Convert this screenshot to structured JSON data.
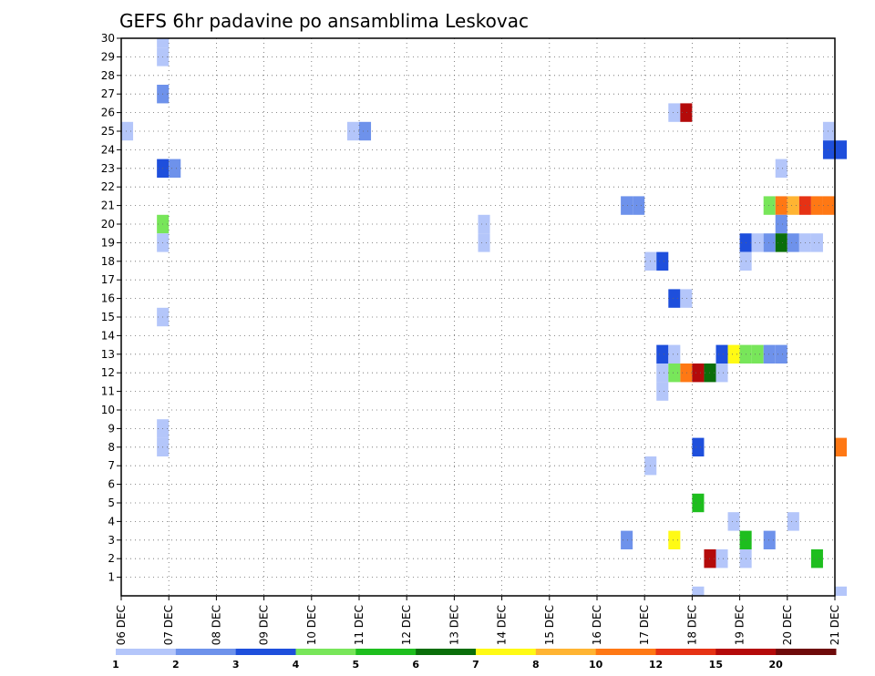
{
  "chart_data": {
    "type": "heatmap",
    "title": "GEFS 6hr padavine po ansamblima Leskovac",
    "xlabel": "",
    "ylabel": "",
    "x_ticks": [
      "06 DEC",
      "07 DEC",
      "08 DEC",
      "09 DEC",
      "10 DEC",
      "11 DEC",
      "12 DEC",
      "13 DEC",
      "14 DEC",
      "15 DEC",
      "16 DEC",
      "17 DEC",
      "18 DEC",
      "19 DEC",
      "20 DEC",
      "21 DEC"
    ],
    "x_range": [
      "06 DEC 00Z",
      "21 DEC 00Z"
    ],
    "y_ticks": [
      1,
      2,
      3,
      4,
      5,
      6,
      7,
      8,
      9,
      10,
      11,
      12,
      13,
      14,
      15,
      16,
      17,
      18,
      19,
      20,
      21,
      22,
      23,
      24,
      25,
      26,
      27,
      28,
      29,
      30
    ],
    "y_range": [
      0,
      30
    ],
    "grid": true,
    "colorbar": {
      "labels": [
        "1",
        "2",
        "3",
        "4",
        "5",
        "6",
        "7",
        "8",
        "10",
        "12",
        "15",
        "20"
      ],
      "colors": [
        "#b4c6fa",
        "#6e92eb",
        "#1e4fdc",
        "#78e65a",
        "#1ebe1e",
        "#0a6e0a",
        "#fffa14",
        "#ffb432",
        "#ff7814",
        "#e63214",
        "#b40a0a",
        "#6e0a0a"
      ],
      "position": "bottom"
    },
    "cells_note": "member, start_day(DEC), start_hour(UTC), level(1-12 colour class)",
    "cells": [
      [
        30,
        6,
        18,
        1
      ],
      [
        29,
        6,
        18,
        1
      ],
      [
        27,
        6,
        18,
        2
      ],
      [
        26,
        17,
        12,
        1
      ],
      [
        26,
        17,
        18,
        11
      ],
      [
        25,
        6,
        0,
        1
      ],
      [
        25,
        10,
        18,
        1
      ],
      [
        25,
        11,
        0,
        2
      ],
      [
        25,
        20,
        18,
        1
      ],
      [
        24,
        20,
        18,
        3
      ],
      [
        24,
        21,
        0,
        3
      ],
      [
        23,
        6,
        18,
        3
      ],
      [
        23,
        7,
        0,
        2
      ],
      [
        23,
        19,
        18,
        1
      ],
      [
        21,
        16,
        12,
        2
      ],
      [
        21,
        16,
        18,
        2
      ],
      [
        21,
        19,
        12,
        4
      ],
      [
        21,
        19,
        18,
        9
      ],
      [
        21,
        20,
        0,
        8
      ],
      [
        21,
        20,
        6,
        10
      ],
      [
        21,
        20,
        12,
        9
      ],
      [
        21,
        20,
        18,
        9
      ],
      [
        20,
        6,
        18,
        4
      ],
      [
        20,
        13,
        12,
        1
      ],
      [
        20,
        19,
        18,
        2
      ],
      [
        19,
        6,
        18,
        1
      ],
      [
        19,
        13,
        12,
        1
      ],
      [
        19,
        19,
        0,
        3
      ],
      [
        19,
        19,
        6,
        1
      ],
      [
        19,
        19,
        12,
        2
      ],
      [
        19,
        19,
        18,
        6
      ],
      [
        19,
        20,
        0,
        2
      ],
      [
        19,
        20,
        6,
        1
      ],
      [
        19,
        20,
        12,
        1
      ],
      [
        18,
        17,
        0,
        1
      ],
      [
        18,
        17,
        6,
        3
      ],
      [
        18,
        19,
        0,
        1
      ],
      [
        16,
        17,
        12,
        3
      ],
      [
        16,
        17,
        18,
        1
      ],
      [
        15,
        6,
        18,
        1
      ],
      [
        13,
        17,
        6,
        3
      ],
      [
        13,
        17,
        12,
        1
      ],
      [
        13,
        18,
        12,
        3
      ],
      [
        13,
        18,
        18,
        7
      ],
      [
        13,
        19,
        0,
        4
      ],
      [
        13,
        19,
        6,
        4
      ],
      [
        13,
        19,
        12,
        2
      ],
      [
        13,
        19,
        18,
        2
      ],
      [
        12,
        17,
        6,
        1
      ],
      [
        12,
        17,
        12,
        4
      ],
      [
        12,
        17,
        18,
        9
      ],
      [
        12,
        18,
        0,
        11
      ],
      [
        12,
        18,
        6,
        6
      ],
      [
        12,
        18,
        12,
        1
      ],
      [
        11,
        17,
        6,
        1
      ],
      [
        9,
        6,
        18,
        1
      ],
      [
        8,
        6,
        18,
        1
      ],
      [
        8,
        18,
        0,
        3
      ],
      [
        8,
        21,
        0,
        9
      ],
      [
        7,
        17,
        0,
        1
      ],
      [
        5,
        18,
        0,
        5
      ],
      [
        4,
        18,
        18,
        1
      ],
      [
        4,
        20,
        0,
        1
      ],
      [
        3,
        16,
        12,
        2
      ],
      [
        3,
        17,
        12,
        7
      ],
      [
        3,
        19,
        0,
        5
      ],
      [
        3,
        19,
        12,
        2
      ],
      [
        2,
        18,
        6,
        11
      ],
      [
        2,
        18,
        12,
        1
      ],
      [
        2,
        19,
        0,
        1
      ],
      [
        2,
        20,
        12,
        5
      ],
      [
        0,
        18,
        0,
        1
      ],
      [
        0,
        21,
        0,
        1
      ]
    ]
  }
}
